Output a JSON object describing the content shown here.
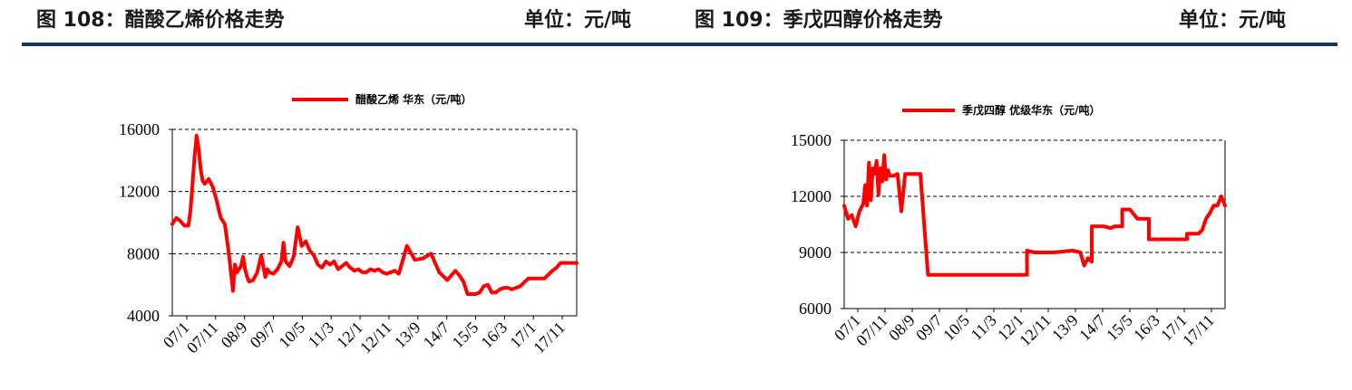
{
  "header": {
    "left_title": "图 108：醋酸乙烯价格走势",
    "left_unit": "单位：元/吨",
    "right_title": "图 109：季戊四醇价格走势",
    "right_unit": "单位：元/吨"
  },
  "colors": {
    "series": "#ff0000",
    "rule": "#17375e",
    "grid": "#000000"
  },
  "chart_data": [
    {
      "type": "line",
      "title": "",
      "legend": "醋酸乙烯 华东（元/吨）",
      "legend_position": "top",
      "series": [
        {
          "name": "醋酸乙烯 华东（元/吨）"
        }
      ],
      "x_tick_labels": [
        "07/1",
        "07/11",
        "08/9",
        "09/7",
        "10/5",
        "11/3",
        "12/1",
        "12/11",
        "13/9",
        "14/7",
        "15/5",
        "16/3",
        "17/1",
        "17/11"
      ],
      "ylim": [
        4000,
        16000
      ],
      "y_ticks": [
        4000,
        8000,
        12000,
        16000
      ],
      "gridlines": [
        8000,
        12000,
        16000
      ],
      "x": [
        0,
        0.01,
        0.02,
        0.03,
        0.04,
        0.045,
        0.05,
        0.055,
        0.06,
        0.065,
        0.07,
        0.075,
        0.08,
        0.09,
        0.1,
        0.11,
        0.115,
        0.12,
        0.13,
        0.14,
        0.15,
        0.155,
        0.16,
        0.17,
        0.175,
        0.18,
        0.185,
        0.19,
        0.2,
        0.21,
        0.22,
        0.23,
        0.235,
        0.24,
        0.25,
        0.26,
        0.27,
        0.275,
        0.28,
        0.29,
        0.3,
        0.31,
        0.32,
        0.33,
        0.34,
        0.35,
        0.36,
        0.37,
        0.38,
        0.39,
        0.4,
        0.41,
        0.42,
        0.43,
        0.44,
        0.45,
        0.46,
        0.47,
        0.48,
        0.49,
        0.5,
        0.51,
        0.52,
        0.53,
        0.54,
        0.55,
        0.56,
        0.58,
        0.6,
        0.62,
        0.64,
        0.66,
        0.68,
        0.7,
        0.71,
        0.72,
        0.73,
        0.74,
        0.75,
        0.76,
        0.77,
        0.78,
        0.79,
        0.8,
        0.81,
        0.82,
        0.83,
        0.84,
        0.86,
        0.88,
        0.9,
        0.92,
        0.94,
        0.95,
        0.96,
        0.97,
        0.98,
        1.0
      ],
      "values": [
        9900,
        10300,
        10100,
        9800,
        9800,
        10800,
        12500,
        14200,
        15600,
        14800,
        13500,
        12700,
        12500,
        12800,
        12300,
        11400,
        10800,
        10300,
        9900,
        8000,
        5600,
        7300,
        6800,
        7200,
        7800,
        7000,
        6500,
        6200,
        6300,
        6800,
        7900,
        6500,
        7000,
        6800,
        6700,
        7000,
        7500,
        8700,
        7500,
        7200,
        7800,
        9700,
        8500,
        8800,
        8200,
        7900,
        7300,
        7100,
        7500,
        7300,
        7500,
        7000,
        7200,
        7400,
        7100,
        6900,
        7000,
        6800,
        6800,
        7000,
        6900,
        7000,
        6800,
        6700,
        6800,
        6900,
        6700,
        8500,
        7600,
        7700,
        8000,
        6800,
        6300,
        6900,
        6600,
        6200,
        5400,
        5400,
        5400,
        5500,
        5900,
        6000,
        5500,
        5500,
        5700,
        5800,
        5800,
        5700,
        5900,
        6400,
        6400,
        6400,
        6900,
        7100,
        7400,
        7400,
        7400,
        7400
      ]
    },
    {
      "type": "line",
      "title": "",
      "legend": "季戊四醇 优级华东（元/吨）",
      "legend_position": "top",
      "series": [
        {
          "name": "季戊四醇 优级华东（元/吨）"
        }
      ],
      "x_tick_labels": [
        "07/1",
        "07/11",
        "08/9",
        "09/7",
        "10/5",
        "11/3",
        "12/1",
        "12/11",
        "13/9",
        "14/7",
        "15/5",
        "16/3",
        "17/1",
        "17/11"
      ],
      "ylim": [
        6000,
        15000
      ],
      "y_ticks": [
        6000,
        9000,
        12000,
        15000
      ],
      "gridlines": [
        9000,
        12000,
        15000
      ],
      "x": [
        0,
        0.01,
        0.02,
        0.03,
        0.04,
        0.05,
        0.055,
        0.06,
        0.065,
        0.07,
        0.075,
        0.08,
        0.085,
        0.09,
        0.095,
        0.1,
        0.105,
        0.11,
        0.115,
        0.12,
        0.13,
        0.14,
        0.15,
        0.16,
        0.17,
        0.18,
        0.185,
        0.19,
        0.2,
        0.22,
        0.24,
        0.25,
        0.25,
        0.3,
        0.35,
        0.4,
        0.45,
        0.48,
        0.48,
        0.5,
        0.55,
        0.6,
        0.6,
        0.62,
        0.63,
        0.64,
        0.65,
        0.65,
        0.68,
        0.7,
        0.71,
        0.73,
        0.73,
        0.75,
        0.77,
        0.77,
        0.8,
        0.8,
        0.85,
        0.9,
        0.9,
        0.93,
        0.94,
        0.95,
        0.96,
        0.97,
        0.98,
        0.99,
        1.0
      ],
      "values": [
        11500,
        10800,
        11000,
        10400,
        11200,
        11600,
        12600,
        11500,
        13800,
        11800,
        13500,
        13200,
        13900,
        12100,
        13500,
        12800,
        14200,
        12900,
        13400,
        13100,
        13100,
        13200,
        11200,
        13200,
        13200,
        13200,
        13200,
        13200,
        13200,
        7800,
        7800,
        7800,
        7800,
        7800,
        7800,
        7800,
        7800,
        7800,
        9100,
        9000,
        9000,
        9100,
        9100,
        9000,
        8300,
        8700,
        8500,
        10400,
        10400,
        10300,
        10400,
        10400,
        11300,
        11300,
        10800,
        10800,
        10800,
        9700,
        9700,
        9700,
        10000,
        10000,
        10200,
        10800,
        11100,
        11500,
        11500,
        12000,
        11500
      ]
    }
  ]
}
